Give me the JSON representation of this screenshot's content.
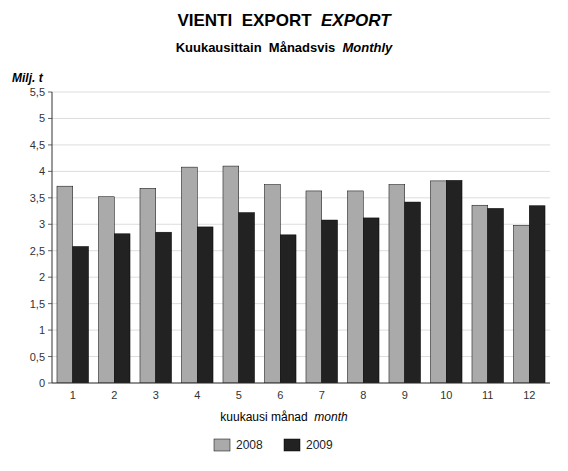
{
  "chart_data": {
    "type": "bar",
    "title": "VIENTI  EXPORT  ",
    "title_italic": "EXPORT",
    "subtitle": "Kuukausittain  Månadsvis  ",
    "subtitle_italic": "Monthly",
    "ylabel": "Milj. t",
    "xlabel": "kuukausi månad  ",
    "xlabel_italic": "month",
    "categories": [
      1,
      2,
      3,
      4,
      5,
      6,
      7,
      8,
      9,
      10,
      11,
      12
    ],
    "series": [
      {
        "name": "2008",
        "color": "#aaaaaa",
        "values": [
          3.72,
          3.52,
          3.68,
          4.08,
          4.1,
          3.75,
          3.63,
          3.63,
          3.75,
          3.82,
          3.36,
          2.98
        ]
      },
      {
        "name": "2009",
        "color": "#222222",
        "values": [
          2.58,
          2.82,
          2.85,
          2.95,
          3.22,
          2.8,
          3.08,
          3.12,
          3.42,
          3.83,
          3.3,
          3.35
        ]
      }
    ],
    "ylim": [
      0,
      5.5
    ],
    "yticks": [
      0,
      {
        "value": 0.5,
        "label": "0,5"
      },
      1,
      {
        "value": 1.5,
        "label": "1,5"
      },
      2,
      {
        "value": 2.5,
        "label": "2,5"
      },
      3,
      {
        "value": 3.5,
        "label": "3,5"
      },
      4,
      {
        "value": 4.5,
        "label": "4,5"
      },
      5,
      {
        "value": 5.5,
        "label": "5,5"
      }
    ],
    "grid": true,
    "legend": "bottom"
  }
}
